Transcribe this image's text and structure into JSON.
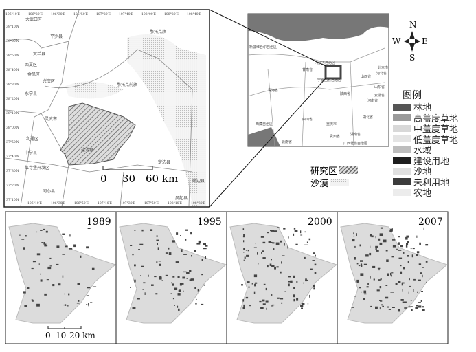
{
  "main_map": {
    "top_ticks": [
      "106°10′E",
      "106°20′E",
      "106°30′E",
      "106°50′E",
      "107°20′E",
      "107°40′E",
      "108°00′E",
      "108°20′E",
      "108°40′E"
    ],
    "bottom_ticks": [
      "106°10′E",
      "106°30′E",
      "106°50′E",
      "107°10′E",
      "107°30′E",
      "107°50′E",
      "108°10′E",
      "108°30′E"
    ],
    "left_ticks": [
      "39°10′N",
      "39°00′N",
      "38°50′N",
      "38°40′N",
      "38°30′N",
      "38°20′N",
      "38°10′N",
      "38°00′N",
      "37°50′N",
      "37°40′N",
      "37°30′N",
      "37°20′N",
      "37°10′N"
    ],
    "labels": [
      "大武口区",
      "平罗县",
      "贺兰县",
      "西夏区",
      "金凤区",
      "兴庆区",
      "永宁县",
      "鄂托克旗",
      "鄂托克前旗",
      "灵武市",
      "盐池县",
      "利通区",
      "中宁县",
      "红寺堡开发区",
      "同心县",
      "定边县",
      "靖边县",
      "吴起县"
    ],
    "scale": [
      "0",
      "30",
      "60 km"
    ]
  },
  "inset_map": {
    "labels": [
      "新疆维吾尔自治区",
      "内蒙古自治区",
      "甘肃省",
      "宁夏回族自治区",
      "青海省",
      "陕西省",
      "山西省",
      "河南省",
      "湖北省",
      "四川省",
      "西藏自治区",
      "重庆市",
      "贵州省",
      "湖南省",
      "云南省",
      "广西壮族自治区",
      "北京市",
      "河北省",
      "山东省",
      "安徽省"
    ]
  },
  "compass": {
    "n": "N",
    "s": "S",
    "e": "E",
    "w": "W"
  },
  "legend": {
    "title": "图例",
    "items": [
      {
        "label": "林地",
        "color": "#555555"
      },
      {
        "label": "高盖度草地",
        "color": "#9a9a9a"
      },
      {
        "label": "中盖度草地",
        "color": "#d8d8d8"
      },
      {
        "label": "低盖度草地",
        "color": "#e4e4e4"
      },
      {
        "label": "水域",
        "color": "#bdbdbd"
      },
      {
        "label": "建设用地",
        "color": "#1e1e1e"
      },
      {
        "label": "沙地",
        "color": "#e0e0e0"
      },
      {
        "label": "未利用地",
        "color": "#3c3c3c"
      },
      {
        "label": "农地",
        "color": "#ececec"
      }
    ],
    "study_area": "研究区",
    "desert": "沙漠"
  },
  "panels": [
    {
      "year": "1989"
    },
    {
      "year": "1995"
    },
    {
      "year": "2000"
    },
    {
      "year": "2007"
    }
  ],
  "small_scale": [
    "0",
    "10",
    "20 km"
  ]
}
